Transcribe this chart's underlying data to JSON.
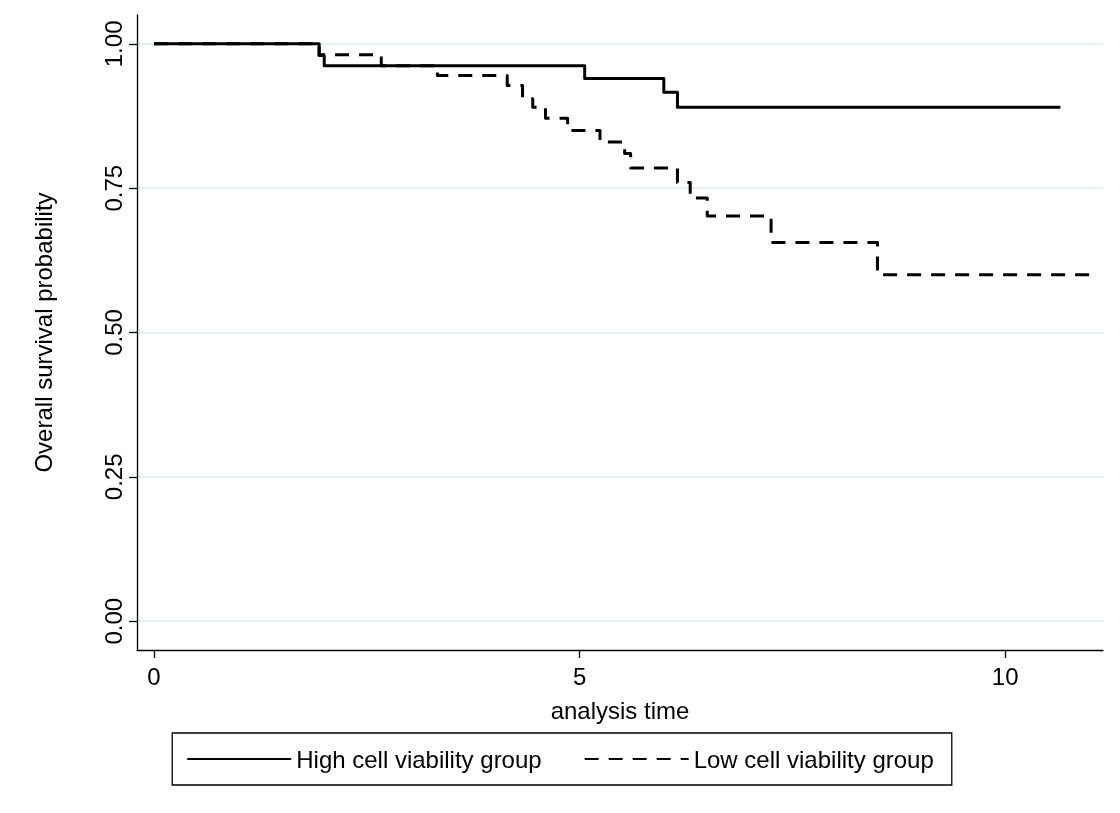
{
  "chart_data": {
    "type": "step",
    "xlabel": "analysis time",
    "ylabel": "Overall survival probability",
    "xlim": [
      -0.2,
      11.15
    ],
    "xticks": [
      0,
      5,
      10
    ],
    "ylim": [
      -0.05,
      1.05
    ],
    "yticks": [
      {
        "value": 0,
        "label": "0.00"
      },
      {
        "value": 0.25,
        "label": "0.25"
      },
      {
        "value": 0.5,
        "label": "0.50"
      },
      {
        "value": 0.75,
        "label": "0.75"
      },
      {
        "value": 1,
        "label": "1.00"
      }
    ],
    "grid": "y",
    "legend": "bottom",
    "marker": "none",
    "series": [
      {
        "name": "High cell viability group",
        "color": "#000000",
        "line_style": "solid",
        "x": [
          0,
          1.94,
          2.0,
          5.06,
          5.99,
          6.15,
          10.65
        ],
        "values": [
          1.0,
          0.98,
          0.962,
          0.94,
          0.916,
          0.89,
          0.89
        ]
      },
      {
        "name": "Low cell viability group",
        "color": "#000000",
        "line_style": "dashed",
        "x": [
          0,
          1.94,
          2.67,
          3.33,
          4.15,
          4.33,
          4.45,
          4.6,
          4.86,
          5.24,
          5.53,
          5.6,
          6.15,
          6.3,
          6.5,
          7.25,
          8.5,
          11.0
        ],
        "values": [
          1.0,
          0.981,
          0.962,
          0.945,
          0.928,
          0.905,
          0.89,
          0.871,
          0.85,
          0.83,
          0.81,
          0.785,
          0.76,
          0.733,
          0.702,
          0.656,
          0.6,
          0.6
        ]
      }
    ]
  }
}
